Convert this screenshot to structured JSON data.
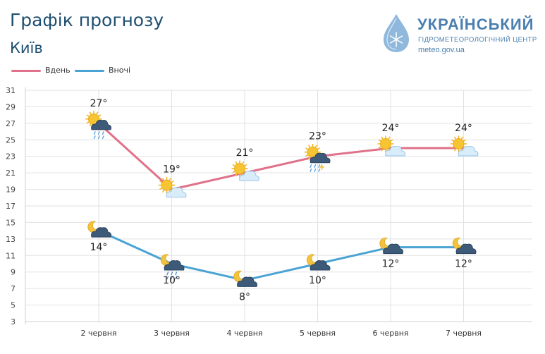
{
  "title": "Графік прогнозу",
  "subtitle": "Київ",
  "logo": {
    "name": "УКРАЇНСЬКИЙ",
    "sub": "ГІДРОМЕТЕОРОЛОГІЧНИЙ ЦЕНТР",
    "url": "meteo.gov.ua"
  },
  "colors": {
    "day": "#e0718a",
    "night": "#4ba3d3",
    "grid": "#e2e2e2",
    "accent": "#4a7fb0"
  },
  "chart_data": {
    "type": "line",
    "categories": [
      "2 червня",
      "3 червня",
      "4 червня",
      "5 червня",
      "6 червня",
      "7 червня"
    ],
    "ylim": [
      3,
      31
    ],
    "yticks": [
      3,
      5,
      7,
      9,
      11,
      13,
      15,
      17,
      19,
      21,
      23,
      25,
      27,
      29,
      31
    ],
    "grid": true,
    "legend_position": "top-left",
    "series": [
      {
        "name": "Вдень",
        "values": [
          27,
          19,
          21,
          23,
          24,
          24
        ],
        "labels": [
          "27°",
          "19°",
          "21°",
          "23°",
          "24°",
          "24°"
        ],
        "icons": [
          "sun-cloud-rain-icon",
          "sun-cloud-icon",
          "sun-cloud-icon",
          "sun-cloud-thunder-icon",
          "sun-cloud-icon",
          "sun-cloud-icon"
        ]
      },
      {
        "name": "Вночі",
        "values": [
          14,
          10,
          8,
          10,
          12,
          12
        ],
        "labels": [
          "14°",
          "10°",
          "8°",
          "10°",
          "12°",
          "12°"
        ],
        "icons": [
          "moon-cloud-icon",
          "moon-cloud-rain-icon",
          "moon-cloud-icon",
          "moon-cloud-icon",
          "moon-cloud-icon",
          "moon-cloud-icon"
        ]
      }
    ]
  }
}
